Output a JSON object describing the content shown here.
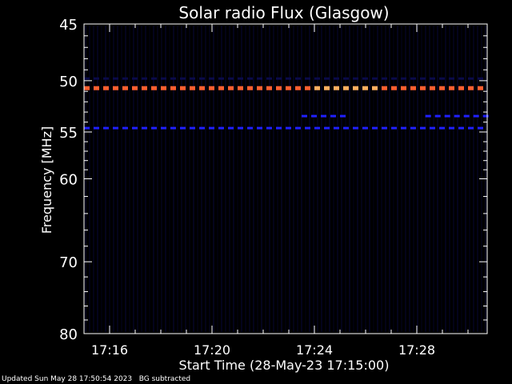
{
  "chart_data": {
    "type": "heatmap",
    "title": "Solar radio Flux (Glasgow)",
    "xlabel": "Start Time (28-May-23 17:15:00)",
    "ylabel": "Frequency [MHz]",
    "xlim": [
      "17:15:00",
      "17:30:45"
    ],
    "x_ticks": [
      "17:16",
      "17:20",
      "17:24",
      "17:28"
    ],
    "ylim": [
      45,
      80
    ],
    "y_scale": "log",
    "y_ticks": [
      "45",
      "50",
      "55",
      "60",
      "70",
      "80"
    ],
    "grid": false,
    "colors": {
      "background": "#000000",
      "axis": "#ffffff",
      "faint": "#0a0a4a",
      "mid": "#2020ff",
      "hot": "#ff6030",
      "hottest": "#ffb060"
    },
    "bands": [
      {
        "freq_mhz": 49.8,
        "start": "17:15:00",
        "end": "17:30:45",
        "level": "faint"
      },
      {
        "freq_mhz": 50.7,
        "start": "17:15:00",
        "end": "17:30:45",
        "level": "hot"
      },
      {
        "freq_mhz": 53.4,
        "start": "17:23:30",
        "end": "17:25:10",
        "level": "mid"
      },
      {
        "freq_mhz": 53.4,
        "start": "17:28:20",
        "end": "17:30:45",
        "level": "mid"
      },
      {
        "freq_mhz": 54.6,
        "start": "17:15:00",
        "end": "17:30:45",
        "level": "mid"
      }
    ]
  },
  "footer": {
    "updated": "Updated Sun May 28 17:50:54 2023",
    "note": "BG subtracted"
  }
}
